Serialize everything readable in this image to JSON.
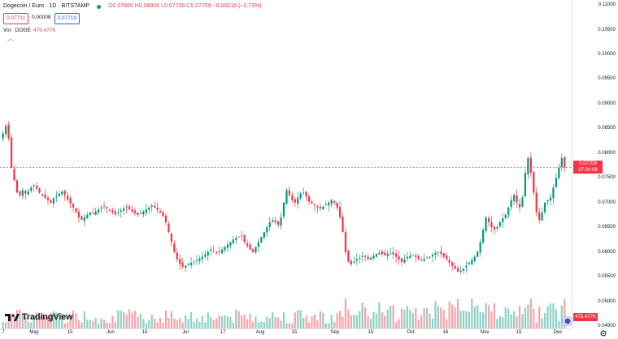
{
  "header": {
    "symbol": "Dogecoin / Euro · 1D · BITSTAMP",
    "open_label": "O",
    "open": "0.07920",
    "high_label": "H",
    "high": "0.08006",
    "low_label": "L",
    "low": "0.07700",
    "close_label": "C",
    "close": "0.07709",
    "change": "−0.00216 (−2.73%)",
    "sell_price": "0.07711",
    "spread": "0.00008",
    "buy_price": "0.07719"
  },
  "volume": {
    "label": "Vol · DOGE",
    "value": "475.477K"
  },
  "last_price_tag": {
    "price": "0.07709",
    "countdown": "07:34:08"
  },
  "volume_tag": "475.477K",
  "logo_text": "TradingView",
  "colors": {
    "up": "#089981",
    "down": "#f23645",
    "accent": "#2962ff"
  },
  "icons": [
    "chevron-up-icon",
    "tradingview-logo-icon",
    "settings-icon",
    "scroll-right-icon"
  ],
  "chart_data": {
    "type": "candlestick",
    "y_ticks": [
      "0.11000",
      "0.10500",
      "0.10000",
      "0.09500",
      "0.09000",
      "0.08500",
      "0.08000",
      "0.07500",
      "0.07000",
      "0.06500",
      "0.06000",
      "0.05500",
      "0.05000",
      "0.04500"
    ],
    "ylim": [
      0.0445,
      0.111
    ],
    "x_ticks": [
      "7",
      "May",
      "15",
      "Jun",
      "15",
      "Jul",
      "17",
      "Aug",
      "15",
      "Sep",
      "15",
      "Oct",
      "16",
      "Nov",
      "15",
      "Dec"
    ],
    "grid": false,
    "series": [
      {
        "name": "Candles",
        "note": "daily close estimates, DOGE/EUR",
        "close": [
          0.084,
          0.0855,
          0.083,
          0.077,
          0.0745,
          0.072,
          0.0715,
          0.0725,
          0.0718,
          0.0722,
          0.073,
          0.0735,
          0.0728,
          0.072,
          0.0715,
          0.071,
          0.0705,
          0.07,
          0.0708,
          0.0712,
          0.0718,
          0.0722,
          0.0715,
          0.0706,
          0.0698,
          0.069,
          0.068,
          0.067,
          0.0665,
          0.067,
          0.0675,
          0.068,
          0.0678,
          0.0682,
          0.0686,
          0.069,
          0.0692,
          0.0688,
          0.0684,
          0.068,
          0.0676,
          0.068,
          0.0684,
          0.0688,
          0.069,
          0.0686,
          0.0682,
          0.0678,
          0.0675,
          0.0678,
          0.0682,
          0.0686,
          0.069,
          0.0694,
          0.069,
          0.0685,
          0.068,
          0.0672,
          0.066,
          0.064,
          0.062,
          0.06,
          0.0585,
          0.0575,
          0.057,
          0.0572,
          0.0575,
          0.0578,
          0.058,
          0.0582,
          0.0586,
          0.059,
          0.0595,
          0.06,
          0.0605,
          0.0602,
          0.0598,
          0.06,
          0.0605,
          0.061,
          0.0615,
          0.062,
          0.0625,
          0.0628,
          0.063,
          0.0632,
          0.062,
          0.0612,
          0.0605,
          0.06,
          0.061,
          0.062,
          0.063,
          0.064,
          0.065,
          0.066,
          0.0665,
          0.066,
          0.0655,
          0.067,
          0.07,
          0.0725,
          0.0715,
          0.0705,
          0.07,
          0.071,
          0.0718,
          0.072,
          0.0712,
          0.0702,
          0.0698,
          0.0694,
          0.069,
          0.0688,
          0.0692,
          0.0696,
          0.07,
          0.0705,
          0.07,
          0.069,
          0.067,
          0.064,
          0.06,
          0.058,
          0.0575,
          0.058,
          0.0585,
          0.0588,
          0.0592,
          0.059,
          0.0586,
          0.0588,
          0.0592,
          0.0596,
          0.0598,
          0.0596,
          0.0594,
          0.0596,
          0.0598,
          0.0595,
          0.059,
          0.0585,
          0.058,
          0.0585,
          0.059,
          0.0592,
          0.0594,
          0.059,
          0.0586,
          0.0584,
          0.0586,
          0.0588,
          0.059,
          0.0594,
          0.0598,
          0.06,
          0.0596,
          0.059,
          0.0585,
          0.0578,
          0.0572,
          0.0566,
          0.056,
          0.0562,
          0.0566,
          0.0572,
          0.0578,
          0.0584,
          0.059,
          0.06,
          0.062,
          0.0645,
          0.067,
          0.066,
          0.065,
          0.0645,
          0.065,
          0.066,
          0.0668,
          0.0675,
          0.069,
          0.0705,
          0.0715,
          0.07,
          0.069,
          0.071,
          0.076,
          0.079,
          0.076,
          0.072,
          0.068,
          0.0665,
          0.068,
          0.07,
          0.0705,
          0.071,
          0.073,
          0.075,
          0.077,
          0.079,
          0.0771
        ]
      }
    ],
    "volume_series": {
      "name": "Vol · DOGE",
      "max_label": "475.477K"
    }
  }
}
